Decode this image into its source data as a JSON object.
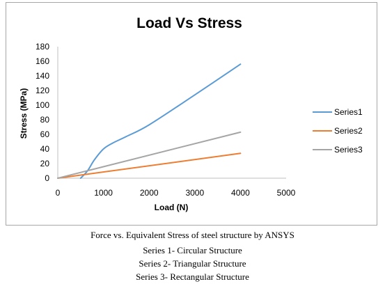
{
  "chart_data": {
    "type": "line",
    "title": "Load Vs Stress",
    "xlabel": "Load (N)",
    "ylabel": "Stress (MPa)",
    "xlim": [
      0,
      5000
    ],
    "ylim": [
      0,
      180
    ],
    "xticks": [
      0,
      1000,
      2000,
      3000,
      4000,
      5000
    ],
    "yticks": [
      0,
      20,
      40,
      60,
      80,
      100,
      120,
      140,
      160,
      180
    ],
    "grid": false,
    "legend_position": "right",
    "series": [
      {
        "name": "Series1",
        "color": "#5b9bd5",
        "points": [
          [
            500,
            0
          ],
          [
            650,
            10
          ],
          [
            800,
            25
          ],
          [
            1000,
            40
          ],
          [
            1200,
            48
          ],
          [
            1500,
            57
          ],
          [
            2000,
            73
          ],
          [
            3000,
            114
          ],
          [
            4000,
            156
          ]
        ]
      },
      {
        "name": "Series2",
        "color": "#ed7d31",
        "points": [
          [
            0,
            0
          ],
          [
            4000,
            34
          ]
        ]
      },
      {
        "name": "Series3",
        "color": "#a5a5a5",
        "points": [
          [
            0,
            0
          ],
          [
            4000,
            63
          ]
        ]
      }
    ]
  },
  "caption": [
    "Force vs. Equivalent Stress of steel structure by ANSYS",
    "Series 1- Circular Structure",
    "Series 2- Triangular Structure",
    "Series 3- Rectangular Structure"
  ]
}
